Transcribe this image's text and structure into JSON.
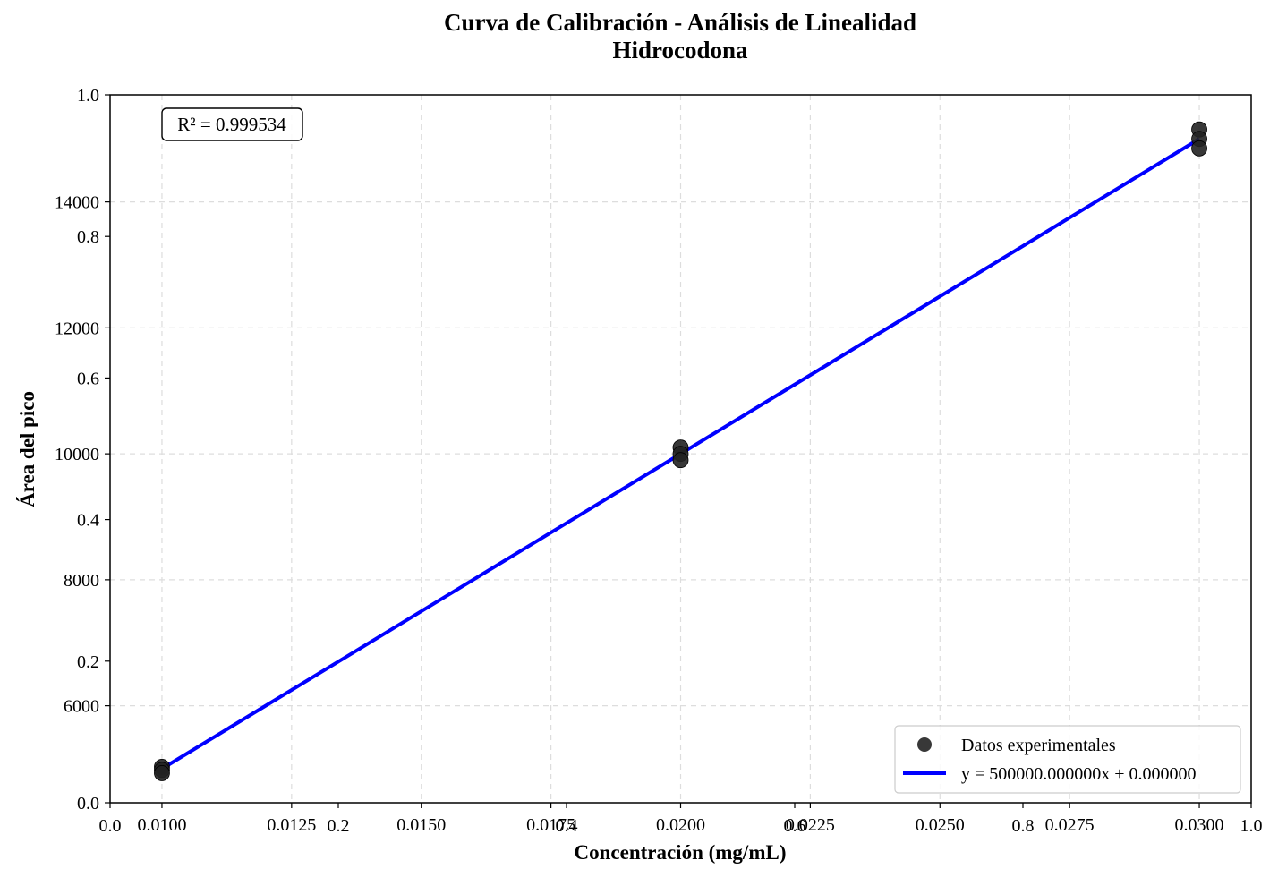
{
  "chart_data": {
    "type": "scatter",
    "title_line1": "Curva de Calibración - Análisis de Linealidad",
    "title_line2": "Hidrocodona",
    "xlabel": "Concentración (mg/mL)",
    "ylabel": "Área del pico",
    "xlim": [
      0.009,
      0.031
    ],
    "ylim": [
      4460,
      15700
    ],
    "x_ticks": [
      "0.0100",
      "0.0125",
      "0.0150",
      "0.0175",
      "0.0200",
      "0.0225",
      "0.0250",
      "0.0275",
      "0.0300"
    ],
    "y_ticks": [
      "6000",
      "8000",
      "10000",
      "12000",
      "14000"
    ],
    "frame_x_ticks": [
      "0.0",
      "0.2",
      "0.4",
      "0.6",
      "0.8",
      "1.0"
    ],
    "frame_y_ticks": [
      "0.0",
      "0.2",
      "0.4",
      "0.6",
      "0.8",
      "1.0"
    ],
    "grid": true,
    "legend_position": "bottom-right",
    "series": [
      {
        "name": "Datos experimentales",
        "kind": "scatter",
        "color": "#222222",
        "points": [
          {
            "x": 0.01,
            "y": 5030
          },
          {
            "x": 0.01,
            "y": 4980
          },
          {
            "x": 0.01,
            "y": 4930
          },
          {
            "x": 0.02,
            "y": 10100
          },
          {
            "x": 0.02,
            "y": 10000
          },
          {
            "x": 0.02,
            "y": 9900
          },
          {
            "x": 0.03,
            "y": 15150
          },
          {
            "x": 0.03,
            "y": 15000
          },
          {
            "x": 0.03,
            "y": 14850
          }
        ]
      },
      {
        "name": "y = 500000.000000x + 0.000000",
        "kind": "line",
        "color": "#0000ff",
        "slope": 500000,
        "intercept": 0
      }
    ],
    "annotation": "R² = 0.999534"
  }
}
